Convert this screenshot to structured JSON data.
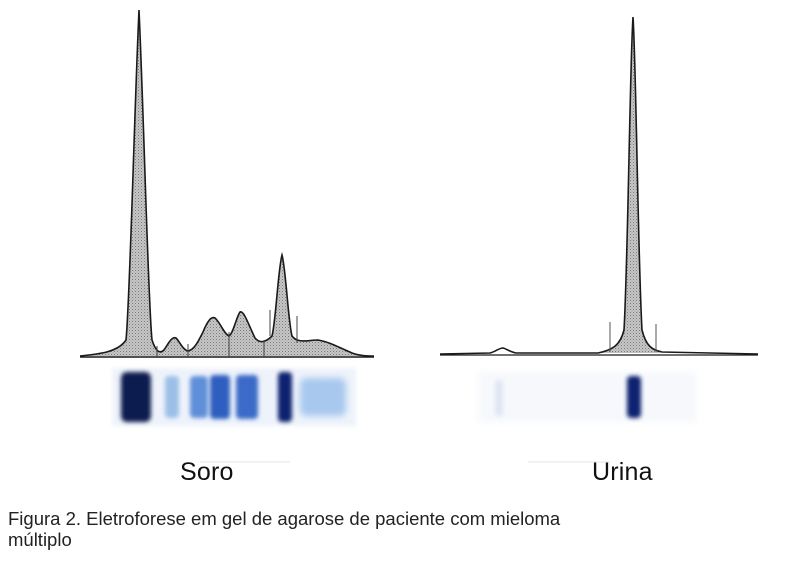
{
  "figure": {
    "panels": [
      {
        "label": "Soro"
      },
      {
        "label": "Urina"
      }
    ],
    "caption_line1": "Figura 2. Eletroforese em gel de agarose de paciente com mieloma",
    "caption_line2": "múltiplo"
  },
  "colors": {
    "trace": "#1a1a1a",
    "peak_fill": "#b8b8b8",
    "band_dark": "#0a1a50",
    "band_medium": "#2f5fc0",
    "band_light": "#a8c8ee"
  }
}
